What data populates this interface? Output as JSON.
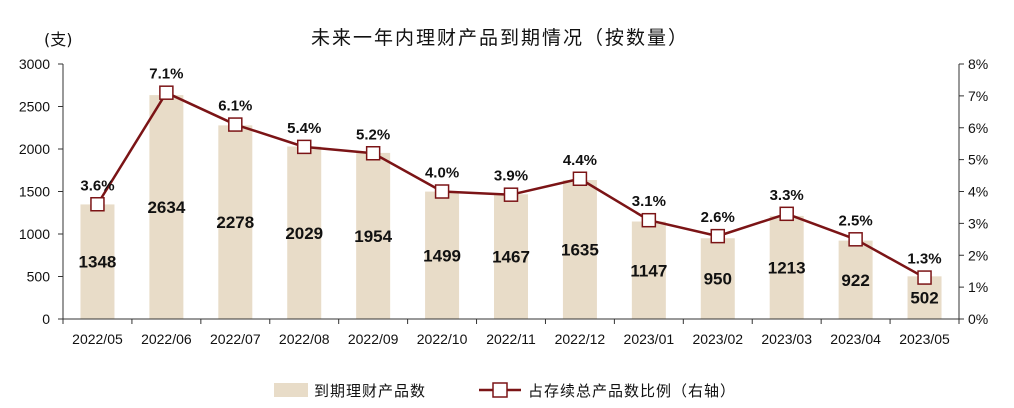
{
  "chart_data": {
    "type": "bar",
    "title": "未来一年内理财产品到期情况（按数量）",
    "unit_left": "(支)",
    "categories": [
      "2022/05",
      "2022/06",
      "2022/07",
      "2022/08",
      "2022/09",
      "2022/10",
      "2022/11",
      "2022/12",
      "2023/01",
      "2023/02",
      "2023/03",
      "2023/04",
      "2023/05"
    ],
    "series": [
      {
        "name": "到期理财产品数",
        "type": "bar",
        "axis": "left",
        "color": "#e8dcc8",
        "values": [
          1348,
          2634,
          2278,
          2029,
          1954,
          1499,
          1467,
          1635,
          1147,
          950,
          1213,
          922,
          502
        ],
        "labels": [
          "1348",
          "2634",
          "2278",
          "2029",
          "1954",
          "1499",
          "1467",
          "1635",
          "1147",
          "950",
          "1213",
          "922",
          "502"
        ]
      },
      {
        "name": "占存续总产品数比例（右轴）",
        "type": "line",
        "axis": "right",
        "color": "#7b1416",
        "values": [
          3.6,
          7.1,
          6.1,
          5.4,
          5.2,
          4.0,
          3.9,
          4.4,
          3.1,
          2.6,
          3.3,
          2.5,
          1.3
        ],
        "labels": [
          "3.6%",
          "7.1%",
          "6.1%",
          "5.4%",
          "5.2%",
          "4.0%",
          "3.9%",
          "4.4%",
          "3.1%",
          "2.6%",
          "3.3%",
          "2.5%",
          "1.3%"
        ]
      }
    ],
    "y_left": {
      "min": 0,
      "max": 3000,
      "ticks": [
        "0",
        "500",
        "1000",
        "1500",
        "2000",
        "2500",
        "3000"
      ]
    },
    "y_right": {
      "min": 0,
      "max": 8,
      "ticks": [
        "0%",
        "1%",
        "2%",
        "3%",
        "4%",
        "5%",
        "6%",
        "7%",
        "8%"
      ]
    },
    "grid": false,
    "legend_position": "bottom"
  }
}
